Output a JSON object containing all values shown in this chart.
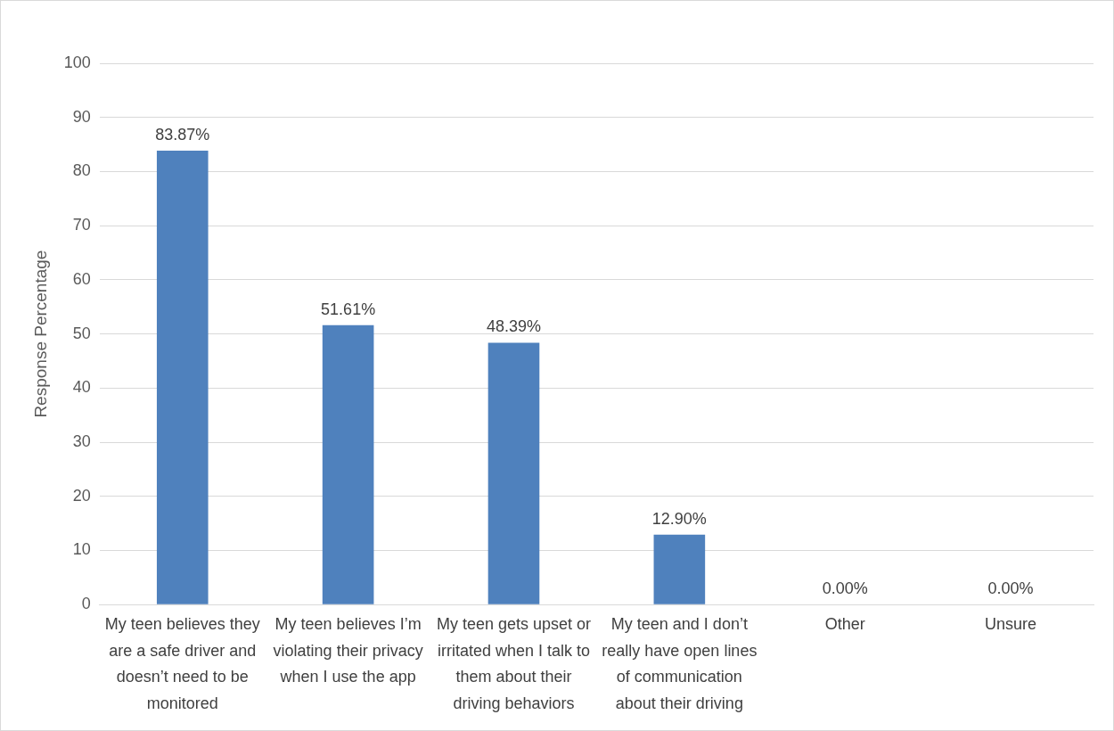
{
  "chart_data": {
    "type": "bar",
    "ylabel": "Response Percentage",
    "categories": [
      "My teen believes they are a safe driver and doesn’t need to be monitored",
      "My teen believes I’m violating their privacy when I use the app",
      "My teen gets upset or irritated when I talk to them about their driving behaviors",
      "My teen and I don’t really have open lines of communication about their driving",
      "Other",
      "Unsure"
    ],
    "values": [
      83.87,
      51.61,
      48.39,
      12.9,
      0,
      0
    ],
    "value_labels": [
      "83.87%",
      "51.61%",
      "48.39%",
      "12.90%",
      "0.00%",
      "0.00%"
    ],
    "color": "#4f81bd",
    "ylim": [
      0,
      100
    ],
    "yticks": [
      0,
      10,
      20,
      30,
      40,
      50,
      60,
      70,
      80,
      90,
      100
    ],
    "grid": "y",
    "legend": false
  }
}
